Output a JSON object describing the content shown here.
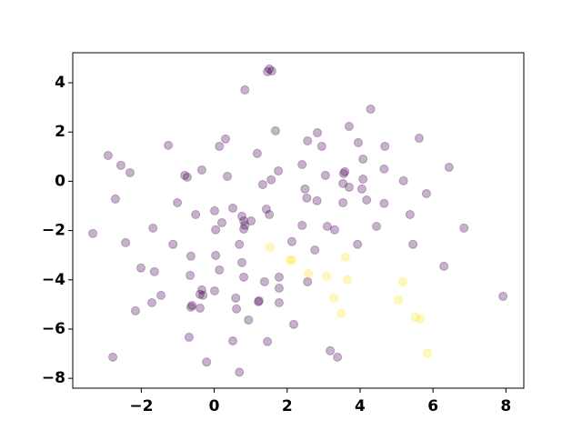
{
  "chart_data": {
    "type": "scatter",
    "alpha": 0.3,
    "xlim": [
      -3.88,
      8.49
    ],
    "ylim": [
      -8.4,
      5.22
    ],
    "xticks": [
      {
        "value": -2,
        "label": "−2"
      },
      0,
      2,
      4,
      6,
      8
    ],
    "yticks": [
      {
        "value": -8,
        "label": "−8"
      },
      {
        "value": -6,
        "label": "−6"
      },
      {
        "value": -4,
        "label": "−4"
      },
      {
        "value": -2,
        "label": "−2"
      },
      0,
      2,
      4
    ],
    "series": [
      {
        "color": "#440154",
        "x": [
          1.58,
          1.51,
          1.46,
          0.84,
          4.29,
          3.7,
          1.68,
          2.83,
          5.62,
          2.56,
          3.95,
          2.95,
          4.68,
          -1.26,
          0.31,
          0.14,
          -2.91,
          1.18,
          4.08,
          -2.56,
          6.44,
          3.58,
          3.55,
          -2.31,
          -0.34,
          1.76,
          2.41,
          -0.81,
          -0.74,
          0.36,
          3.05,
          4.66,
          4.08,
          5.19,
          1.56,
          1.33,
          3.53,
          3.7,
          4.05,
          2.49,
          5.82,
          -2.71,
          2.54,
          2.82,
          3.53,
          4.18,
          -1.01,
          4.66,
          0.51,
          1.43,
          0.01,
          -0.51,
          1.51,
          5.37,
          0.76,
          0.81,
          1.01,
          0.21,
          0.84,
          0.81,
          0.04,
          2.41,
          3.1,
          3.3,
          4.45,
          -1.68,
          6.85,
          -3.33,
          -2.43,
          -1.13,
          0.69,
          2.13,
          3.93,
          5.45,
          2.76,
          -0.64,
          0.04,
          0.76,
          6.3,
          -2.01,
          -1.64,
          0.14,
          0.81,
          1.78,
          -0.66,
          1.38,
          2.56,
          1.78,
          -0.34,
          0.01,
          -0.39,
          -0.31,
          -1.46,
          7.92,
          0.59,
          1.23,
          1.21,
          -1.71,
          1.78,
          -0.61,
          -0.64,
          -0.39,
          0.61,
          -2.16,
          0.94,
          2.18,
          -0.69,
          0.51,
          1.46,
          3.18,
          3.38,
          -2.78,
          -0.21,
          0.69
        ],
        "y": [
          4.48,
          4.56,
          4.45,
          3.71,
          2.93,
          2.23,
          2.05,
          1.97,
          1.75,
          1.64,
          1.57,
          1.42,
          1.42,
          1.46,
          1.72,
          1.42,
          1.05,
          1.13,
          0.9,
          0.65,
          0.57,
          0.39,
          0.31,
          0.35,
          0.46,
          0.42,
          0.68,
          0.24,
          0.17,
          0.2,
          0.24,
          0.5,
          0.09,
          0.02,
          0.06,
          -0.13,
          -0.09,
          -0.24,
          -0.31,
          -0.31,
          -0.5,
          -0.72,
          -0.68,
          -0.79,
          -0.87,
          -0.76,
          -0.87,
          -0.9,
          -1.09,
          -1.13,
          -1.2,
          -1.35,
          -1.35,
          -1.35,
          -1.42,
          -1.61,
          -1.61,
          -1.68,
          -1.79,
          -1.94,
          -1.97,
          -1.79,
          -1.83,
          -1.97,
          -1.83,
          -1.9,
          -1.9,
          -2.12,
          -2.49,
          -2.56,
          -2.56,
          -2.45,
          -2.56,
          -2.56,
          -2.79,
          -3.04,
          -3.01,
          -3.3,
          -3.45,
          -3.52,
          -3.67,
          -3.6,
          -3.89,
          -3.89,
          -3.82,
          -4.08,
          -4.08,
          -4.34,
          -4.41,
          -4.45,
          -4.59,
          -4.63,
          -4.63,
          -4.67,
          -4.74,
          -4.85,
          -4.89,
          -4.93,
          -4.93,
          -5.04,
          -5.11,
          -5.15,
          -5.18,
          -5.26,
          -5.63,
          -5.81,
          -6.33,
          -6.48,
          -6.51,
          -6.88,
          -7.14,
          -7.14,
          -7.34,
          -7.75
        ]
      },
      {
        "color": "#fde725",
        "x": [
          1.53,
          2.08,
          2.13,
          3.6,
          2.58,
          3.08,
          3.65,
          5.17,
          3.28,
          5.05,
          3.48,
          5.52,
          5.65,
          5.85
        ],
        "y": [
          -2.68,
          -3.19,
          -3.19,
          -3.08,
          -3.75,
          -3.86,
          -4.0,
          -4.08,
          -4.74,
          -4.82,
          -5.37,
          -5.52,
          -5.59,
          -6.99
        ]
      }
    ]
  }
}
